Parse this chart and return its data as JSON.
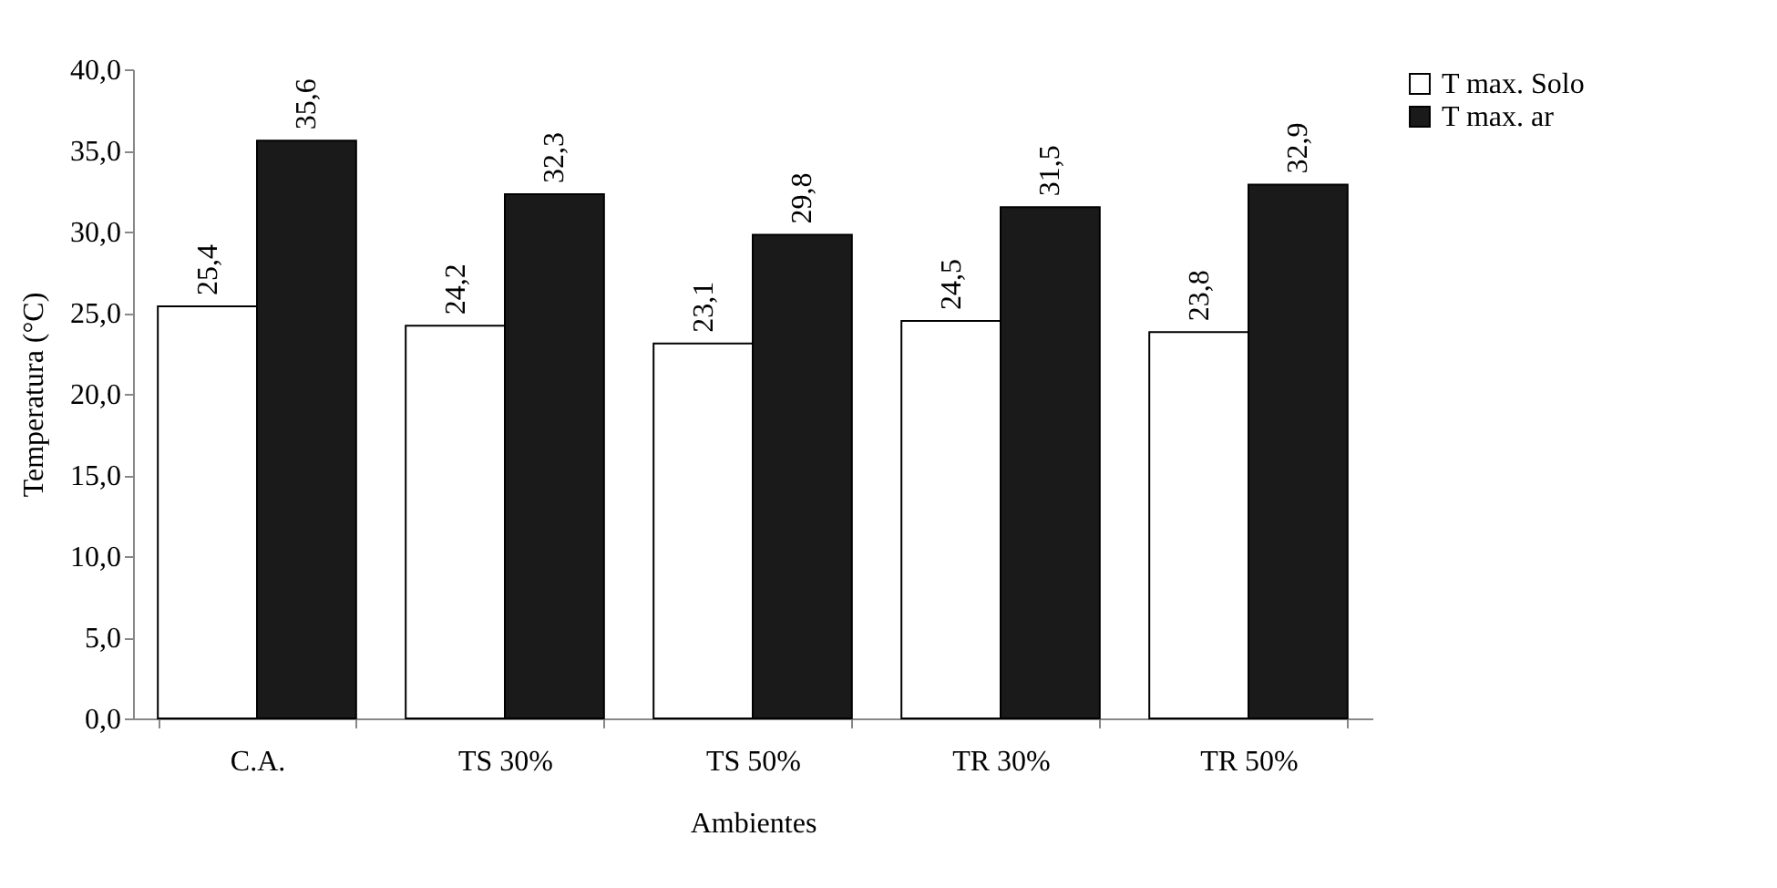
{
  "chart_data": {
    "type": "bar",
    "xlabel": "Ambientes",
    "ylabel": "Temperatura (°C)",
    "categories": [
      "C.A.",
      "TS 30%",
      "TS 50%",
      "TR 30%",
      "TR 50%"
    ],
    "series": [
      {
        "name": "T max. Solo",
        "color": "#ffffff",
        "values": [
          25.4,
          24.2,
          23.1,
          24.5,
          23.8
        ],
        "value_labels": [
          "25,4",
          "24,2",
          "23,1",
          "24,5",
          "23,8"
        ]
      },
      {
        "name": "T max. ar",
        "color": "#1a1a1a",
        "values": [
          35.6,
          32.3,
          29.8,
          31.5,
          32.9
        ],
        "value_labels": [
          "35,6",
          "32,3",
          "29,8",
          "31,5",
          "32,9"
        ]
      }
    ],
    "ylim": [
      0,
      40
    ],
    "yticks": [
      {
        "value": 0,
        "label": "0,0"
      },
      {
        "value": 5,
        "label": "5,0"
      },
      {
        "value": 10,
        "label": "10,0"
      },
      {
        "value": 15,
        "label": "15,0"
      },
      {
        "value": 20,
        "label": "20,0"
      },
      {
        "value": 25,
        "label": "25,0"
      },
      {
        "value": 30,
        "label": "30,0"
      },
      {
        "value": 35,
        "label": "35,0"
      },
      {
        "value": 40,
        "label": "40,0"
      }
    ],
    "grid": false,
    "legend": "right"
  }
}
